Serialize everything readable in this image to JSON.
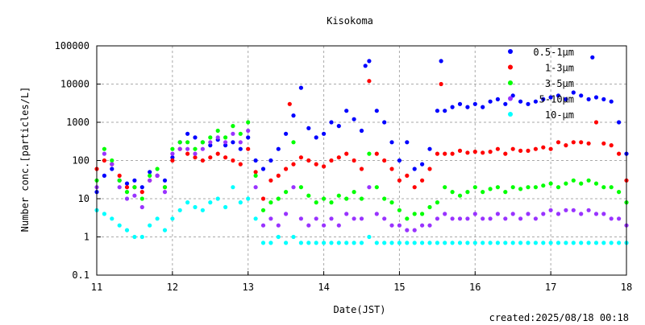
{
  "chart_data": {
    "type": "scatter",
    "title": "Kisokoma",
    "xlabel": "Date(JST)",
    "ylabel": "Number conc.[particles/L]",
    "footer": "created:2025/08/18 00:18",
    "x_ticks": [
      "11",
      "12",
      "13",
      "14",
      "15",
      "16",
      "17",
      "18"
    ],
    "y_ticks": [
      "100000",
      "10000",
      "1000",
      "100",
      "10",
      "1",
      "0.1"
    ],
    "xlim": [
      11,
      18
    ],
    "ylim": [
      0.1,
      100000
    ],
    "y_scale": "log",
    "legend_position": "top-right",
    "grid": "dashed",
    "series": [
      {
        "name": "0.5-1μm",
        "color": "#0000ff",
        "x": [
          11.0,
          11.1,
          11.2,
          11.3,
          11.4,
          11.5,
          11.6,
          11.7,
          11.8,
          11.9,
          12.0,
          12.1,
          12.2,
          12.3,
          12.4,
          12.5,
          12.6,
          12.7,
          12.8,
          12.9,
          13.0,
          13.1,
          13.2,
          13.3,
          13.4,
          13.5,
          13.6,
          13.7,
          13.8,
          13.9,
          14.0,
          14.1,
          14.2,
          14.3,
          14.4,
          14.5,
          14.55,
          14.6,
          14.7,
          14.8,
          14.9,
          15.0,
          15.1,
          15.2,
          15.3,
          15.4,
          15.5,
          15.55,
          15.6,
          15.7,
          15.8,
          15.9,
          16.0,
          16.1,
          16.2,
          16.3,
          16.4,
          16.5,
          16.6,
          16.7,
          16.8,
          16.9,
          17.0,
          17.1,
          17.2,
          17.3,
          17.4,
          17.5,
          17.55,
          17.6,
          17.7,
          17.8,
          17.9,
          18.0
        ],
        "y": [
          15,
          40,
          60,
          30,
          25,
          30,
          20,
          50,
          40,
          30,
          120,
          300,
          500,
          400,
          300,
          250,
          350,
          250,
          300,
          200,
          400,
          100,
          60,
          100,
          200,
          500,
          1500,
          8000,
          700,
          400,
          500,
          1000,
          800,
          2000,
          1200,
          600,
          30000,
          40000,
          2000,
          1000,
          300,
          100,
          300,
          60,
          80,
          200,
          2000,
          40000,
          2000,
          2500,
          3000,
          2500,
          3000,
          2500,
          3500,
          4000,
          3000,
          5000,
          3500,
          3000,
          3500,
          4000,
          4500,
          5000,
          4000,
          6000,
          5000,
          4000,
          50000,
          4500,
          4000,
          3500,
          1000,
          150
        ]
      },
      {
        "name": "1-3μm",
        "color": "#ff0000",
        "x": [
          11.0,
          11.1,
          11.2,
          11.3,
          11.4,
          11.5,
          11.6,
          11.7,
          11.8,
          11.9,
          12.0,
          12.1,
          12.2,
          12.3,
          12.4,
          12.5,
          12.6,
          12.7,
          12.8,
          12.9,
          13.0,
          13.1,
          13.2,
          13.3,
          13.4,
          13.5,
          13.55,
          13.6,
          13.7,
          13.8,
          13.9,
          14.0,
          14.1,
          14.2,
          14.3,
          14.4,
          14.5,
          14.6,
          14.7,
          14.8,
          14.9,
          15.0,
          15.1,
          15.2,
          15.3,
          15.4,
          15.5,
          15.55,
          15.6,
          15.7,
          15.8,
          15.9,
          16.0,
          16.1,
          16.2,
          16.3,
          16.4,
          16.5,
          16.6,
          16.7,
          16.8,
          16.9,
          17.0,
          17.1,
          17.2,
          17.3,
          17.4,
          17.5,
          17.6,
          17.7,
          17.8,
          17.9,
          18.0
        ],
        "y": [
          60,
          100,
          80,
          40,
          20,
          20,
          15,
          30,
          40,
          20,
          100,
          200,
          150,
          120,
          100,
          120,
          150,
          120,
          100,
          80,
          200,
          50,
          10,
          30,
          40,
          60,
          3000,
          80,
          120,
          100,
          80,
          70,
          100,
          120,
          150,
          100,
          60,
          12000,
          150,
          100,
          60,
          30,
          40,
          20,
          30,
          60,
          150,
          10000,
          150,
          150,
          180,
          160,
          170,
          160,
          170,
          200,
          150,
          200,
          180,
          180,
          200,
          220,
          200,
          300,
          250,
          300,
          300,
          280,
          1000,
          280,
          250,
          150,
          30
        ]
      },
      {
        "name": "3-5μm",
        "color": "#00ff00",
        "x": [
          11.0,
          11.1,
          11.2,
          11.3,
          11.4,
          11.5,
          11.6,
          11.7,
          11.8,
          11.9,
          12.0,
          12.1,
          12.2,
          12.3,
          12.4,
          12.5,
          12.6,
          12.7,
          12.8,
          12.9,
          13.0,
          13.1,
          13.2,
          13.3,
          13.4,
          13.5,
          13.6,
          13.7,
          13.8,
          13.9,
          14.0,
          14.1,
          14.2,
          14.3,
          14.4,
          14.5,
          14.6,
          14.7,
          14.8,
          14.9,
          15.0,
          15.1,
          15.2,
          15.3,
          15.4,
          15.5,
          15.6,
          15.7,
          15.8,
          15.9,
          16.0,
          16.1,
          16.2,
          16.3,
          16.4,
          16.5,
          16.6,
          16.7,
          16.8,
          16.9,
          17.0,
          17.1,
          17.2,
          17.3,
          17.4,
          17.5,
          17.6,
          17.7,
          17.8,
          17.9,
          18.0
        ],
        "y": [
          30,
          200,
          100,
          30,
          15,
          20,
          10,
          40,
          60,
          20,
          200,
          300,
          300,
          200,
          300,
          400,
          600,
          400,
          800,
          500,
          1000,
          40,
          5,
          8,
          10,
          15,
          300,
          20,
          12,
          8,
          10,
          8,
          12,
          10,
          15,
          10,
          150,
          20,
          10,
          8,
          5,
          3,
          4,
          4,
          6,
          8,
          20,
          15,
          12,
          15,
          20,
          15,
          18,
          20,
          15,
          20,
          18,
          20,
          20,
          22,
          25,
          20,
          25,
          30,
          25,
          30,
          25,
          20,
          20,
          15,
          8
        ]
      },
      {
        "name": "5-10μm",
        "color": "#9933ff",
        "x": [
          11.0,
          11.1,
          11.2,
          11.3,
          11.4,
          11.5,
          11.6,
          11.7,
          11.8,
          11.9,
          12.0,
          12.1,
          12.2,
          12.3,
          12.4,
          12.5,
          12.6,
          12.7,
          12.8,
          12.9,
          13.0,
          13.1,
          13.2,
          13.3,
          13.4,
          13.5,
          13.6,
          13.7,
          13.8,
          13.9,
          14.0,
          14.1,
          14.2,
          14.3,
          14.4,
          14.5,
          14.6,
          14.7,
          14.8,
          14.9,
          15.0,
          15.1,
          15.2,
          15.3,
          15.4,
          15.5,
          15.6,
          15.7,
          15.8,
          15.9,
          16.0,
          16.1,
          16.2,
          16.3,
          16.4,
          16.5,
          16.6,
          16.7,
          16.8,
          16.9,
          17.0,
          17.1,
          17.2,
          17.3,
          17.4,
          17.5,
          17.6,
          17.7,
          17.8,
          17.9,
          18.0
        ],
        "y": [
          20,
          150,
          80,
          20,
          10,
          12,
          6,
          30,
          40,
          15,
          150,
          200,
          200,
          150,
          200,
          300,
          400,
          300,
          500,
          300,
          600,
          20,
          2,
          3,
          2,
          4,
          20,
          3,
          2,
          3,
          2,
          3,
          2,
          4,
          3,
          3,
          20,
          4,
          3,
          2,
          2,
          1.5,
          1.5,
          2,
          2,
          3,
          4,
          3,
          3,
          3,
          4,
          3,
          3,
          4,
          3,
          4,
          3,
          4,
          3,
          4,
          5,
          4,
          5,
          5,
          4,
          5,
          4,
          4,
          3,
          3,
          2
        ]
      },
      {
        "name": "10-μm",
        "color": "#00ffff",
        "x": [
          11.0,
          11.1,
          11.2,
          11.3,
          11.4,
          11.5,
          11.6,
          11.7,
          11.8,
          11.9,
          12.0,
          12.1,
          12.2,
          12.3,
          12.4,
          12.5,
          12.6,
          12.7,
          12.8,
          12.9,
          13.0,
          13.1,
          13.2,
          13.3,
          13.4,
          13.5,
          13.6,
          13.7,
          13.8,
          13.9,
          14.0,
          14.1,
          14.2,
          14.3,
          14.4,
          14.5,
          14.6,
          14.7,
          14.8,
          14.9,
          15.0,
          15.1,
          15.2,
          15.3,
          15.4,
          15.5,
          15.6,
          15.7,
          15.8,
          15.9,
          16.0,
          16.1,
          16.2,
          16.3,
          16.4,
          16.5,
          16.6,
          16.7,
          16.8,
          16.9,
          17.0,
          17.1,
          17.2,
          17.3,
          17.4,
          17.5,
          17.6,
          17.7,
          17.8,
          17.9,
          18.0
        ],
        "y": [
          5,
          4,
          3,
          2,
          1.5,
          1,
          1,
          2,
          3,
          1.5,
          3,
          5,
          8,
          6,
          5,
          8,
          10,
          6,
          20,
          8,
          10,
          3,
          0.7,
          0.7,
          1,
          0.7,
          1,
          0.7,
          0.7,
          0.7,
          0.7,
          0.7,
          0.7,
          0.7,
          0.7,
          0.7,
          1,
          0.7,
          0.7,
          0.7,
          0.7,
          0.7,
          0.7,
          0.7,
          0.7,
          0.7,
          0.7,
          0.7,
          0.7,
          0.7,
          0.7,
          0.7,
          0.7,
          0.7,
          0.7,
          0.7,
          0.7,
          0.7,
          0.7,
          0.7,
          0.7,
          0.7,
          0.7,
          0.7,
          0.7,
          0.7,
          0.7,
          0.7,
          0.7,
          0.7,
          0.7
        ]
      }
    ]
  }
}
